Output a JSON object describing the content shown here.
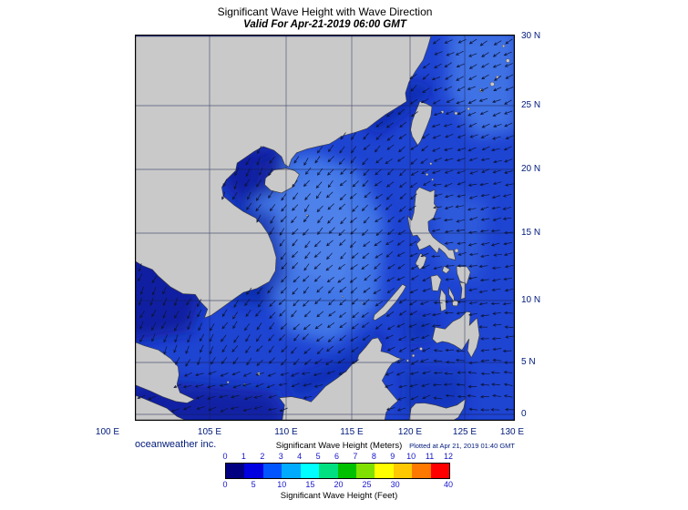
{
  "header": {
    "title": "Significant Wave Height with Wave Direction",
    "subtitle": "Valid For Apr-21-2019 06:00 GMT"
  },
  "map": {
    "x_axis_labels": [
      "100 E",
      "105 E",
      "110 E",
      "115 E",
      "120 E",
      "125 E",
      "130 E"
    ],
    "y_axis_labels": [
      "30 N",
      "25 N",
      "20 N",
      "15 N",
      "10 N",
      "5 N",
      "0"
    ],
    "colors": {
      "land": "#c9c9c9",
      "coastline": "#3a3a3a",
      "ocean_base": "#1e44d2",
      "ocean_light": "#447ae8",
      "ocean_xlight": "#5b8cee",
      "ocean_dark": "#0a1a99",
      "grid": "#141c4a",
      "arrow": "#0c1538",
      "border": "#000000"
    }
  },
  "footer": {
    "credit": "oceanweather inc.",
    "plotted": "Plotted at Apr 21, 2019 01:40 GMT"
  },
  "legend": {
    "title_meters": "Significant Wave Height (Meters)",
    "meters_ticks": [
      "0",
      "1",
      "2",
      "3",
      "4",
      "5",
      "6",
      "7",
      "8",
      "9",
      "10",
      "11",
      "12"
    ],
    "feet_ticks": [
      "0",
      "5",
      "10",
      "15",
      "20",
      "25",
      "30",
      "40"
    ],
    "title_feet": "Significant Wave Height (Feet)",
    "colors": [
      "#000080",
      "#0000e1",
      "#0055ff",
      "#00aaff",
      "#00ffff",
      "#00e080",
      "#00c000",
      "#80e000",
      "#ffff00",
      "#ffc800",
      "#ff7800",
      "#ff0000"
    ],
    "tick_color": "#1414cc"
  }
}
